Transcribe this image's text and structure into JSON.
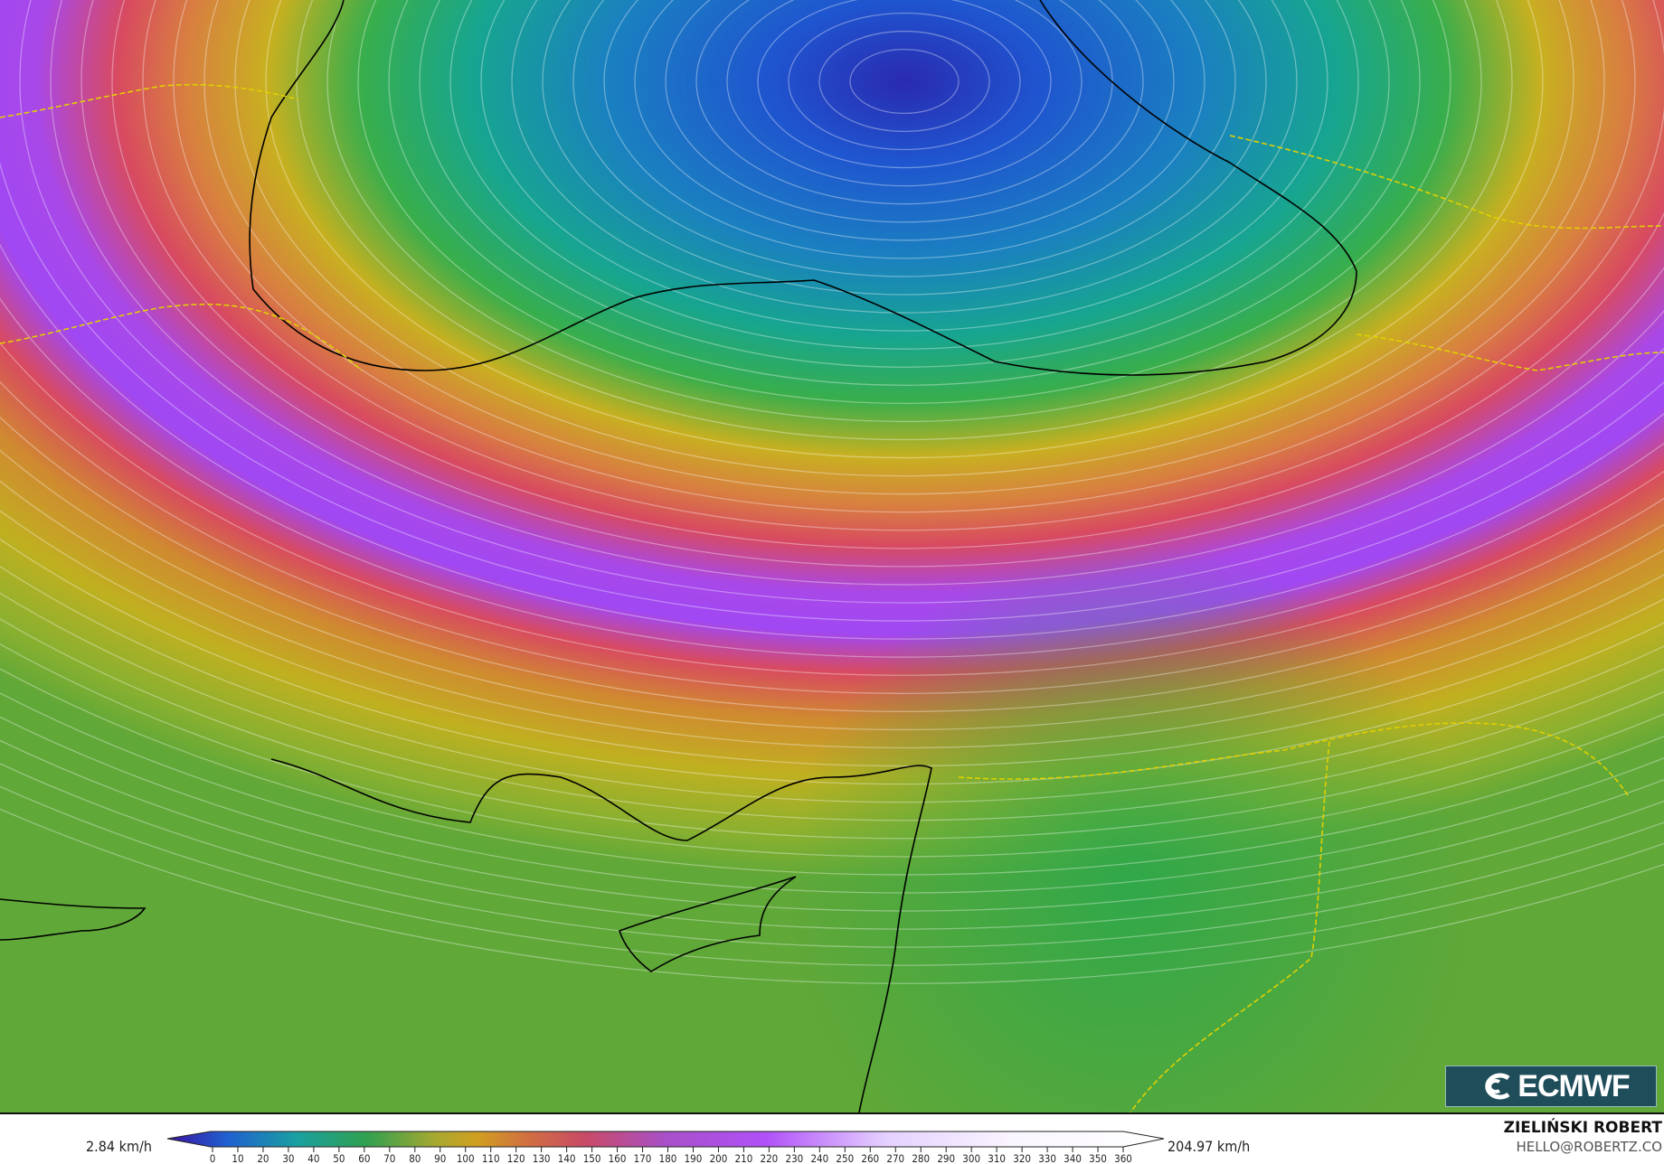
{
  "map": {
    "variable_unit": "km/h",
    "colors": {
      "low": "#2a1a9a",
      "blue": "#1f5fd0",
      "teal": "#17a08a",
      "green": "#2ea84a",
      "yellow": "#c8b020",
      "orange": "#d08a30",
      "red": "#d24a5a",
      "purple": "#a24af0",
      "lavender": "#e8d8ff",
      "white": "#ffffff",
      "streamline": "#ffffff",
      "coastline": "#000000",
      "border": "#c8c8c8",
      "country_border": "#e0d000"
    }
  },
  "colorbar": {
    "min_label": "2.84 km/h",
    "max_label": "204.97 km/h",
    "ticks": [
      "0",
      "10",
      "20",
      "30",
      "40",
      "50",
      "60",
      "70",
      "80",
      "90",
      "100",
      "110",
      "120",
      "130",
      "140",
      "150",
      "160",
      "170",
      "180",
      "190",
      "200",
      "210",
      "220",
      "230",
      "240",
      "250",
      "260",
      "270",
      "280",
      "290",
      "300",
      "310",
      "320",
      "330",
      "340",
      "350",
      "360"
    ]
  },
  "logo": {
    "text": "ECMWF"
  },
  "credit": {
    "author": "ZIELIŃSKI ROBERT",
    "email": "HELLO@ROBERTZ.CO"
  }
}
